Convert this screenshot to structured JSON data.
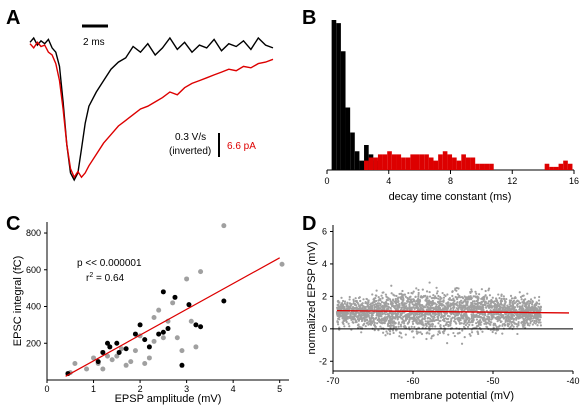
{
  "colors": {
    "red": "#dd0000",
    "black": "#000000",
    "gray": "#a0a0a0"
  },
  "chart_data": [
    {
      "panel": "A",
      "type": "line",
      "scalebar_time": "2 ms",
      "scalebar_black_line1": "0.3 V/s",
      "scalebar_black_line2": "(inverted)",
      "scalebar_red": "6.6 pA",
      "series": [
        {
          "color": "black",
          "x": [
            0,
            0.25,
            0.5,
            0.75,
            1.0,
            1.25,
            1.5,
            1.75,
            2.0,
            2.25,
            2.5,
            2.75,
            3.0,
            3.25,
            3.5,
            3.75,
            4.0,
            4.5,
            5.0,
            5.5,
            6.0,
            6.5,
            7.0,
            7.5,
            8.0,
            8.5,
            9.0,
            9.5,
            10.0,
            10.5,
            11.0,
            11.5,
            12.0,
            12.5,
            13.0,
            13.5,
            14.0,
            14.5,
            15.0,
            15.5,
            16.0,
            16.5
          ],
          "y": [
            0.97,
            1.0,
            0.95,
            0.98,
            0.96,
            0.99,
            0.93,
            0.9,
            0.8,
            0.55,
            0.25,
            0.05,
            0.0,
            0.05,
            0.22,
            0.4,
            0.52,
            0.62,
            0.7,
            0.78,
            0.83,
            0.86,
            0.94,
            0.9,
            0.96,
            0.88,
            0.93,
            1.0,
            0.92,
            0.97,
            0.9,
            0.95,
            0.93,
            0.99,
            0.91,
            0.96,
            0.94,
            0.98,
            0.92,
            1.0,
            0.95,
            0.93
          ]
        },
        {
          "color": "red",
          "x": [
            0,
            0.25,
            0.5,
            0.75,
            1.0,
            1.25,
            1.5,
            1.75,
            2.0,
            2.25,
            2.5,
            2.75,
            3.0,
            3.25,
            3.5,
            3.75,
            4.0,
            4.5,
            5.0,
            5.5,
            6.0,
            6.5,
            7.0,
            7.5,
            8.0,
            8.5,
            9.0,
            9.5,
            10.0,
            10.5,
            11.0,
            11.5,
            12.0,
            12.5,
            13.0,
            13.5,
            14.0,
            14.5,
            15.0,
            15.5,
            16.0,
            16.5
          ],
          "y": [
            0.96,
            0.93,
            0.97,
            0.94,
            0.95,
            0.9,
            0.88,
            0.82,
            0.7,
            0.5,
            0.25,
            0.08,
            0.02,
            0.06,
            0.02,
            0.05,
            0.1,
            0.18,
            0.26,
            0.32,
            0.38,
            0.42,
            0.46,
            0.5,
            0.52,
            0.55,
            0.58,
            0.62,
            0.6,
            0.65,
            0.68,
            0.7,
            0.72,
            0.74,
            0.76,
            0.78,
            0.77,
            0.8,
            0.79,
            0.82,
            0.83,
            0.85
          ]
        }
      ]
    },
    {
      "panel": "B",
      "type": "bar",
      "xlabel": "decay time constant (ms)",
      "xticks": [
        "0",
        "4",
        "8",
        "12",
        "16"
      ],
      "xlim": [
        0,
        16
      ],
      "bin_width": 0.3,
      "series": [
        {
          "color": "black",
          "bins_start": [
            0.3,
            0.6,
            0.9,
            1.2,
            1.5,
            1.8,
            2.1,
            2.4,
            2.7,
            3.0,
            3.3
          ],
          "values": [
            48,
            47,
            38,
            20,
            12,
            6,
            3,
            8,
            5,
            3,
            1
          ]
        },
        {
          "color": "red",
          "bins_start": [
            2.4,
            2.7,
            3.0,
            3.3,
            3.6,
            3.9,
            4.2,
            4.5,
            4.8,
            5.1,
            5.4,
            5.7,
            6.0,
            6.3,
            6.6,
            6.9,
            7.2,
            7.5,
            7.8,
            8.1,
            8.4,
            8.7,
            9.0,
            9.3,
            9.6,
            9.9,
            10.2,
            10.5,
            14.1,
            14.4,
            14.7,
            15.0,
            15.3,
            15.6
          ],
          "values": [
            3,
            4,
            4,
            5,
            5,
            6,
            5,
            5,
            4,
            4,
            5,
            5,
            5,
            5,
            4,
            3,
            5,
            6,
            5,
            4,
            3,
            5,
            4,
            4,
            2,
            2,
            2,
            2,
            2,
            1,
            1,
            2,
            3,
            2
          ]
        }
      ]
    },
    {
      "panel": "C",
      "type": "scatter",
      "xlabel": "EPSP amplitude (mV)",
      "ylabel": "EPSC integral (fC)",
      "xticks": [
        "0",
        "1",
        "2",
        "3",
        "4",
        "5"
      ],
      "yticks": [
        "200",
        "400",
        "600",
        "800"
      ],
      "xlim": [
        0,
        5.2
      ],
      "ylim": [
        0,
        860
      ],
      "annotation_p": "p << 0.000001",
      "annotation_r2_prefix": "r",
      "annotation_r2_sup": "2",
      "annotation_r2_rest": " = 0.64",
      "fit_line": {
        "x": [
          0.4,
          5.0
        ],
        "y": [
          20,
          665
        ]
      },
      "series": [
        {
          "color": "black",
          "x": [
            0.45,
            1.1,
            1.2,
            1.3,
            1.35,
            1.5,
            1.55,
            1.7,
            1.9,
            2.0,
            2.1,
            2.2,
            2.4,
            2.5,
            2.5,
            2.6,
            2.75,
            2.9,
            3.05,
            3.2,
            3.3,
            3.8
          ],
          "y": [
            35,
            100,
            150,
            200,
            180,
            200,
            150,
            170,
            250,
            300,
            220,
            180,
            250,
            260,
            480,
            280,
            450,
            80,
            410,
            300,
            290,
            430
          ]
        },
        {
          "color": "gray",
          "x": [
            0.5,
            0.6,
            0.85,
            1.0,
            1.1,
            1.2,
            1.3,
            1.4,
            1.5,
            1.6,
            1.7,
            1.8,
            1.9,
            2.0,
            2.1,
            2.2,
            2.3,
            2.3,
            2.4,
            2.5,
            2.6,
            2.7,
            2.8,
            2.9,
            3.0,
            3.1,
            3.2,
            3.3,
            3.8,
            5.05
          ],
          "y": [
            40,
            90,
            60,
            120,
            90,
            60,
            130,
            110,
            130,
            170,
            80,
            100,
            160,
            240,
            90,
            120,
            340,
            210,
            380,
            230,
            320,
            420,
            230,
            160,
            550,
            320,
            180,
            590,
            840,
            630
          ]
        }
      ]
    },
    {
      "panel": "D",
      "type": "scatter",
      "xlabel": "membrane potential (mV)",
      "ylabel": "normalized EPSP (mV)",
      "xticks": [
        "-70",
        "-60",
        "-50",
        "-40"
      ],
      "yticks": [
        "-2",
        "0",
        "2",
        "4",
        "6"
      ],
      "xlim": [
        -70,
        -40
      ],
      "ylim": [
        -2.6,
        6.4
      ],
      "fit_line": {
        "x": [
          -69.5,
          -40.5
        ],
        "y": [
          1.12,
          0.98
        ]
      },
      "zero_line": 0,
      "cloud": {
        "x_min": -69.5,
        "x_max": -44,
        "mean": 1.05,
        "sd": 0.62,
        "count": 2600,
        "color": "gray"
      }
    }
  ]
}
